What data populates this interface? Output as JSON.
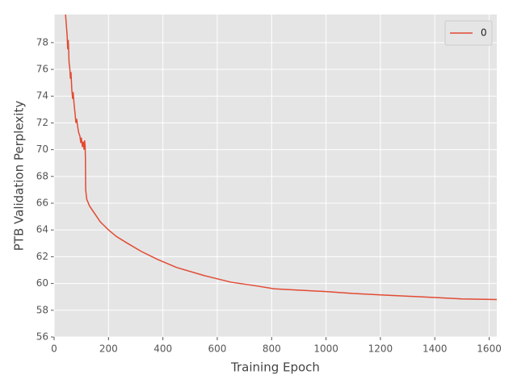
{
  "chart_data": {
    "type": "line",
    "x_label": "Training Epoch",
    "y_label": "PTB Validation Perplexity",
    "xlim": [
      0,
      1628
    ],
    "ylim": [
      56,
      80.1
    ],
    "xticks": [
      0,
      200,
      400,
      600,
      800,
      1000,
      1200,
      1400,
      1600
    ],
    "yticks": [
      56,
      58,
      60,
      62,
      64,
      66,
      68,
      70,
      72,
      74,
      76,
      78
    ],
    "grid": true,
    "legend": "upper right",
    "x": [
      42,
      48,
      50,
      52,
      55,
      58,
      60,
      62,
      65,
      68,
      70,
      73,
      78,
      80,
      83,
      86,
      90,
      95,
      98,
      100,
      104,
      107,
      110,
      112,
      114,
      115,
      116,
      120,
      130,
      150,
      170,
      200,
      230,
      270,
      320,
      380,
      450,
      550,
      650,
      750,
      810,
      900,
      1000,
      1100,
      1200,
      1300,
      1400,
      1500,
      1628
    ],
    "series": [
      {
        "name": "0",
        "color": "#e24a33",
        "values": [
          80.1,
          78.5,
          77.5,
          78.2,
          76.5,
          76,
          75.3,
          75.8,
          74.5,
          73.8,
          74.3,
          73.5,
          72.5,
          72,
          72.3,
          71.8,
          71.3,
          71,
          70.5,
          70.9,
          70.2,
          70.6,
          70,
          70.7,
          70.3,
          69.5,
          67,
          66.3,
          65.8,
          65.2,
          64.6,
          64,
          63.5,
          63,
          62.4,
          61.8,
          61.2,
          60.6,
          60.1,
          59.8,
          59.6,
          59.5,
          59.4,
          59.25,
          59.15,
          59.05,
          58.95,
          58.85,
          58.8
        ]
      }
    ]
  }
}
